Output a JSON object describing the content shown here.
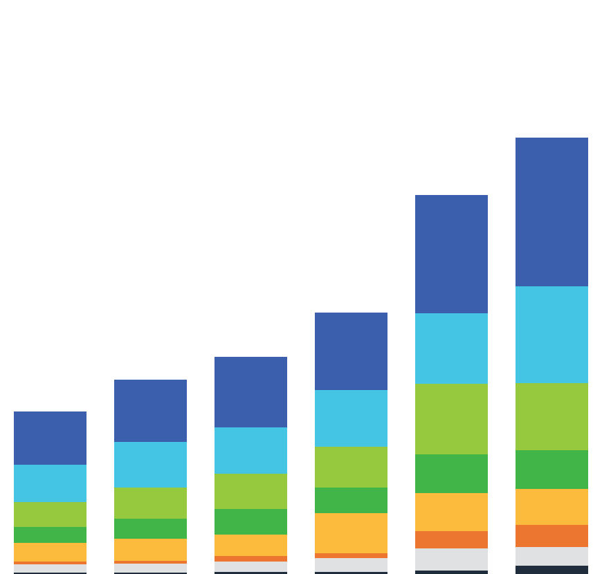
{
  "chart_data": {
    "type": "stacked-bar",
    "ylim": [
      0,
      830
    ],
    "series": [
      {
        "color": "#1f2d3d",
        "values": [
          2,
          2,
          3,
          3,
          5,
          12
        ]
      },
      {
        "color": "#e0e1e3",
        "values": [
          12,
          13,
          15,
          20,
          32,
          27
        ]
      },
      {
        "color": "#ec7530",
        "values": [
          4,
          4,
          8,
          7,
          25,
          32
        ]
      },
      {
        "color": "#fcbb3c",
        "values": [
          27,
          32,
          31,
          58,
          55,
          52
        ]
      },
      {
        "color": "#42b549",
        "values": [
          23,
          29,
          37,
          37,
          56,
          56
        ]
      },
      {
        "color": "#96c93d",
        "values": [
          36,
          45,
          51,
          59,
          102,
          97
        ]
      },
      {
        "color": "#44c5e3",
        "values": [
          54,
          66,
          67,
          82,
          102,
          140
        ]
      },
      {
        "color": "#3b5fad",
        "values": [
          77,
          90,
          102,
          112,
          171,
          215
        ]
      }
    ]
  }
}
